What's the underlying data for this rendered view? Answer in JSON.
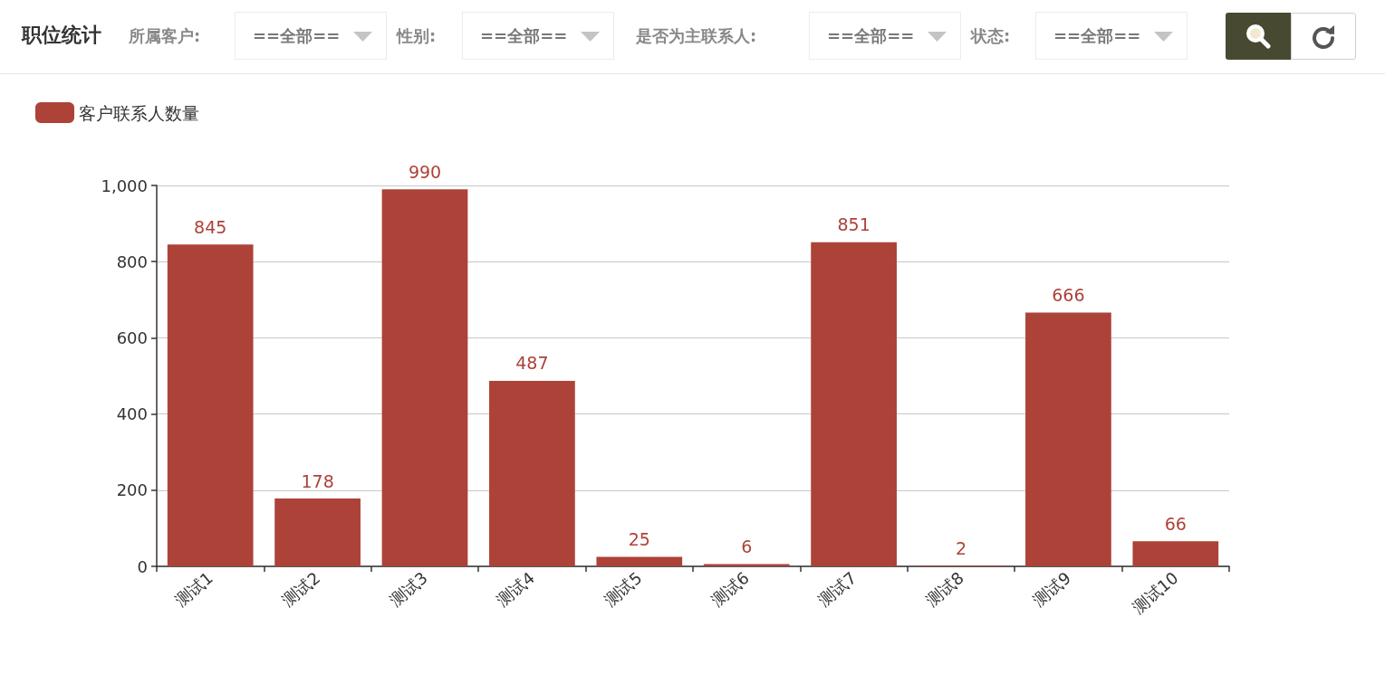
{
  "chart_data": {
    "type": "bar",
    "title": "职位统计",
    "annotations": [
      "所属客户:",
      "==全部==",
      "性别:",
      "==全部==",
      "是否为主联系人:",
      "==全部==",
      "状态:",
      "==全部=="
    ],
    "categories": [
      "测试1",
      "测试2",
      "测试3",
      "测试4",
      "测试5",
      "测试6",
      "测试7",
      "测试8",
      "测试9",
      "测试10"
    ],
    "series": [
      {
        "name": "客户联系人数量",
        "color": "#ad4238",
        "values": [
          845,
          178,
          990,
          487,
          25,
          6,
          851,
          2,
          666,
          66
        ]
      }
    ],
    "ylim": [
      0,
      1000
    ],
    "yticks": [
      0,
      200,
      400,
      600,
      800,
      {
        "value": 1000,
        "label": "1,000"
      }
    ],
    "grid": "y",
    "legend": "top left",
    "data_labels": true
  }
}
